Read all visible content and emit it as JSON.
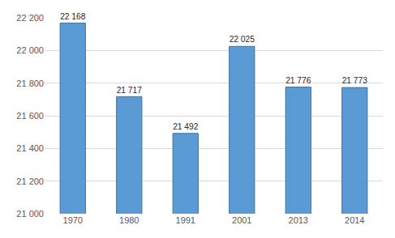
{
  "chart_data": {
    "type": "bar",
    "categories": [
      "1970",
      "1980",
      "1991",
      "2001",
      "2013",
      "2014"
    ],
    "values": [
      22168,
      21717,
      21492,
      22025,
      21776,
      21773
    ],
    "value_labels": [
      "22 168",
      "21 717",
      "21 492",
      "22 025",
      "21 776",
      "21 773"
    ],
    "data_labels": true,
    "color": "#5b9bd5",
    "ylim": [
      21000,
      22200
    ],
    "yticks": [
      {
        "value": 21000,
        "label": "21 000"
      },
      {
        "value": 21200,
        "label": "21 200"
      },
      {
        "value": 21400,
        "label": "21 400"
      },
      {
        "value": 21600,
        "label": "21 600"
      },
      {
        "value": 21800,
        "label": "21 800"
      },
      {
        "value": 22000,
        "label": "22 000"
      },
      {
        "value": 22200,
        "label": "22 200"
      }
    ],
    "grid": true
  }
}
